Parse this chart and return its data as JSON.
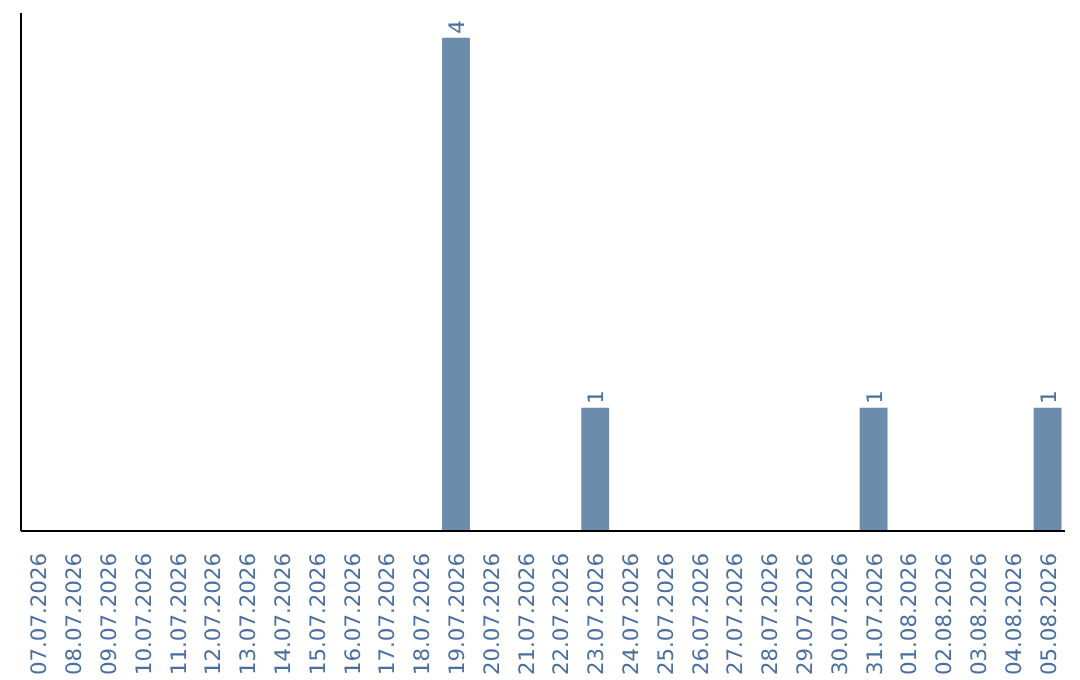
{
  "chart_data": {
    "type": "bar",
    "categories": [
      "07.07.2026",
      "08.07.2026",
      "09.07.2026",
      "10.07.2026",
      "11.07.2026",
      "12.07.2026",
      "13.07.2026",
      "14.07.2026",
      "15.07.2026",
      "16.07.2026",
      "17.07.2026",
      "18.07.2026",
      "19.07.2026",
      "20.07.2026",
      "21.07.2026",
      "22.07.2026",
      "23.07.2026",
      "24.07.2026",
      "25.07.2026",
      "26.07.2026",
      "27.07.2026",
      "28.07.2026",
      "29.07.2026",
      "30.07.2026",
      "31.07.2026",
      "01.08.2026",
      "02.08.2026",
      "03.08.2026",
      "04.08.2026",
      "05.08.2026"
    ],
    "values": [
      null,
      null,
      null,
      null,
      null,
      null,
      null,
      null,
      null,
      null,
      null,
      null,
      4,
      null,
      null,
      null,
      1,
      null,
      null,
      null,
      null,
      null,
      null,
      null,
      1,
      null,
      null,
      null,
      null,
      1
    ],
    "data_labels": true,
    "color": "#6b8caa",
    "grid": false,
    "tick_labels": "x"
  }
}
